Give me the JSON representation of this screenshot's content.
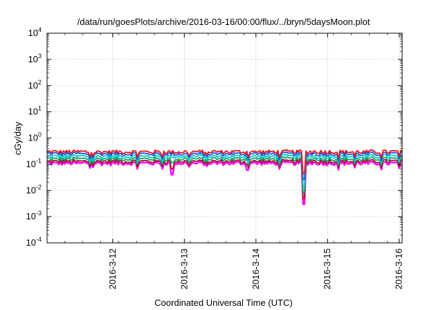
{
  "chart_data": {
    "type": "line",
    "title": "/data/run/goesPlots/archive/2016-03-16/00:00/flux/../bryn/5daysMoon.plot",
    "xlabel": "Coordinated Universal Time (UTC)",
    "ylabel": "cGy/day",
    "yscale": "log",
    "ylim": [
      0.0001,
      10000
    ],
    "xlim": [
      "2016-03-11 02:00",
      "2016-03-16 01:00"
    ],
    "grid": true,
    "y_ticks": [
      {
        "base": "10",
        "exp": "-4",
        "value": 0.0001
      },
      {
        "base": "10",
        "exp": "-3",
        "value": 0.001
      },
      {
        "base": "10",
        "exp": "-2",
        "value": 0.01
      },
      {
        "base": "10",
        "exp": "-1",
        "value": 0.1
      },
      {
        "base": "10",
        "exp": "0",
        "value": 1
      },
      {
        "base": "10",
        "exp": "1",
        "value": 10
      },
      {
        "base": "10",
        "exp": "2",
        "value": 100
      },
      {
        "base": "10",
        "exp": "3",
        "value": 1000
      },
      {
        "base": "10",
        "exp": "4",
        "value": 10000
      }
    ],
    "x_ticks": [
      {
        "label": "2016-3-12",
        "value": "2016-03-12 00:00"
      },
      {
        "label": "2016-3-13",
        "value": "2016-03-13 00:00"
      },
      {
        "label": "2016-3-14",
        "value": "2016-03-14 00:00"
      },
      {
        "label": "2016-3-15",
        "value": "2016-03-15 00:00"
      },
      {
        "label": "2016-3-16",
        "value": "2016-03-16 00:00"
      }
    ],
    "dips": [
      {
        "time": "2016-03-12 20:00",
        "value": 0.04
      },
      {
        "time": "2016-03-14 16:00",
        "value": 0.003
      },
      {
        "time": "2016-03-13 21:00",
        "value": 0.06
      }
    ],
    "series": [
      {
        "color": "#ff00ff",
        "baseline": 0.11
      },
      {
        "color": "#9a1a1a",
        "baseline": 0.13
      },
      {
        "color": "#00a86b",
        "baseline": 0.16
      },
      {
        "color": "#00cccc",
        "baseline": 0.2
      },
      {
        "color": "#2b4de0",
        "baseline": 0.25
      },
      {
        "color": "#e8141c",
        "baseline": 0.3
      }
    ]
  }
}
